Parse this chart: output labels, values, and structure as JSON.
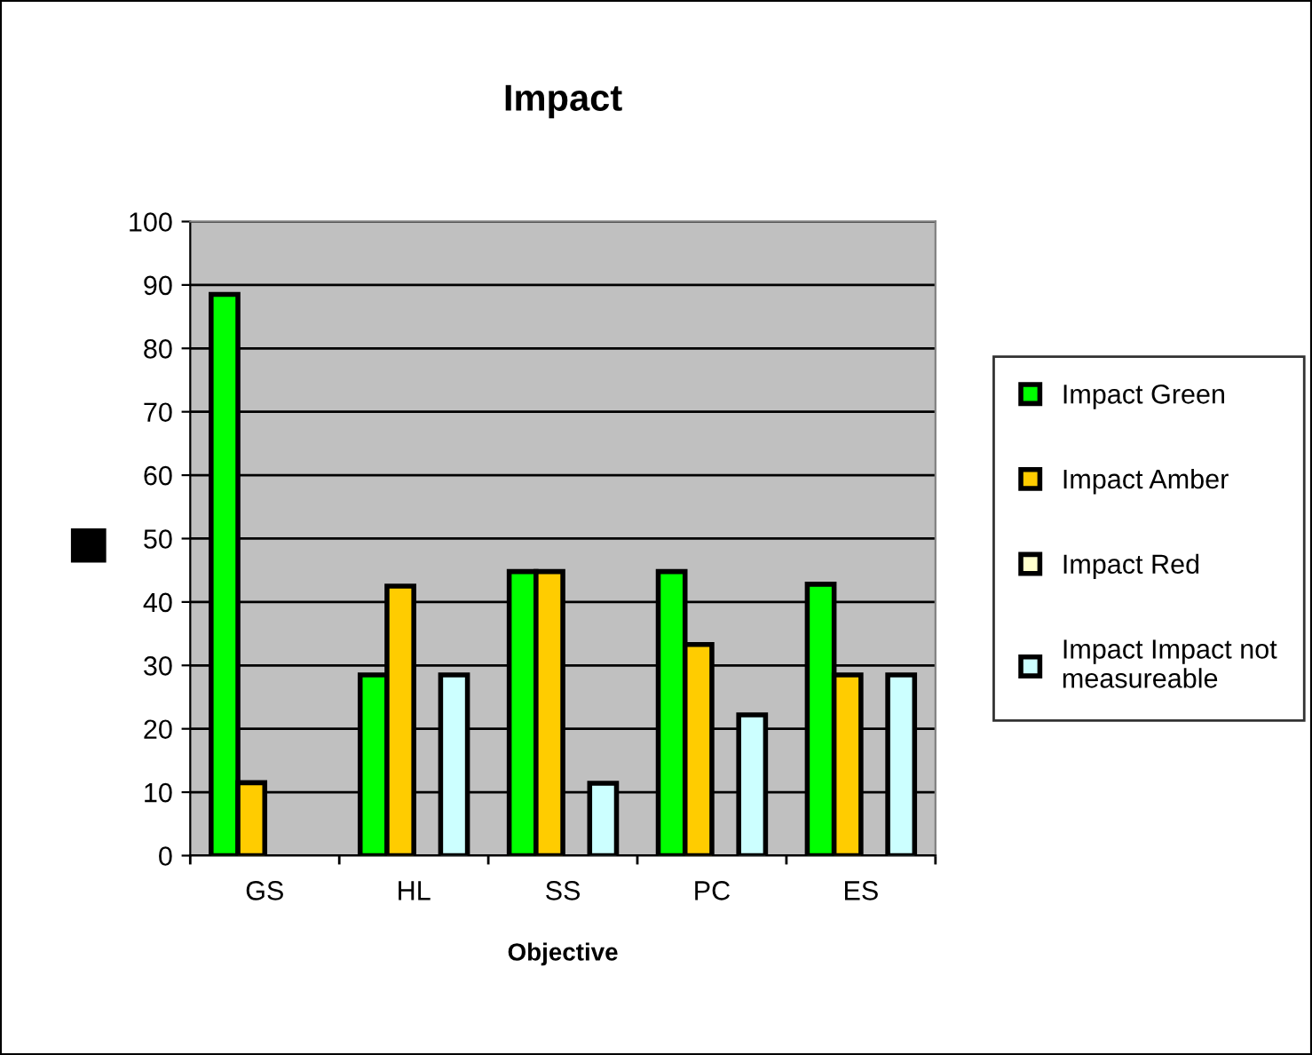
{
  "chart_data": {
    "type": "bar",
    "title": "Impact",
    "xlabel": "Objective",
    "categories": [
      "GS",
      "HL",
      "SS",
      "PC",
      "ES"
    ],
    "series": [
      {
        "name": "Impact Green",
        "color": "#00ff00",
        "values": [
          88.5,
          28.5,
          44.8,
          44.8,
          42.8
        ]
      },
      {
        "name": "Impact Amber",
        "color": "#ffcc00",
        "values": [
          11.5,
          42.5,
          44.8,
          33.3,
          28.5
        ]
      },
      {
        "name": "Impact Red",
        "color": "#ffffcc",
        "values": [
          null,
          null,
          null,
          null,
          null
        ]
      },
      {
        "name": "Impact Impact not\nmeasureable",
        "color": "#ccffff",
        "values": [
          null,
          28.5,
          11.4,
          22.2,
          28.5
        ]
      }
    ],
    "ylim": [
      0,
      100
    ],
    "yticks": [
      0,
      10,
      20,
      30,
      40,
      50,
      60,
      70,
      80,
      90,
      100
    ],
    "grid": "y",
    "legend": "right"
  }
}
